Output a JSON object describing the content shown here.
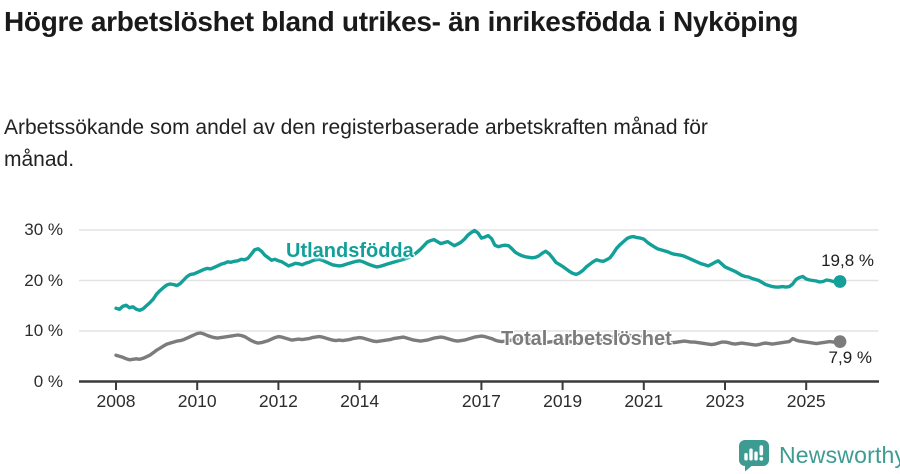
{
  "header": {
    "title": "Högre arbetslöshet bland utrikes- än inrikesfödda i Nyköping",
    "subtitle": "Arbetssökande som andel av den registerbaserade arbetskraften månad för månad."
  },
  "chart_data": {
    "type": "line",
    "title": "Högre arbetslöshet bland utrikes- än inrikesfödda i Nyköping",
    "subtitle": "Arbetssökande som andel av den registerbaserade arbetskraften månad för månad.",
    "x_start": "2008-01",
    "x_end": "2025-11",
    "x_frequency": "monthly",
    "ylim": [
      0,
      32
    ],
    "grid": "horizontal",
    "y_ticks": [
      {
        "label": "0 %",
        "value": 0
      },
      {
        "label": "10 %",
        "value": 10
      },
      {
        "label": "20 %",
        "value": 20
      },
      {
        "label": "30 %",
        "value": 30
      }
    ],
    "x_ticks": [
      {
        "label": "2008",
        "year": 2008
      },
      {
        "label": "2010",
        "year": 2010
      },
      {
        "label": "2012",
        "year": 2012
      },
      {
        "label": "2014",
        "year": 2014
      },
      {
        "label": "2017",
        "year": 2017
      },
      {
        "label": "2019",
        "year": 2019
      },
      {
        "label": "2021",
        "year": 2021
      },
      {
        "label": "2023",
        "year": 2023
      },
      {
        "label": "2025",
        "year": 2025
      }
    ],
    "series": [
      {
        "name": "Utlandsfödda",
        "color": "#12A099",
        "end_label": "19,8 %",
        "end_value": 19.8,
        "values": [
          14.5,
          14.3,
          14.9,
          15.1,
          14.6,
          14.8,
          14.3,
          14.1,
          14.4,
          15.0,
          15.6,
          16.3,
          17.3,
          18.0,
          18.6,
          19.1,
          19.3,
          19.2,
          19.0,
          19.4,
          20.1,
          20.8,
          21.2,
          21.3,
          21.6,
          21.9,
          22.2,
          22.4,
          22.3,
          22.6,
          22.9,
          23.2,
          23.4,
          23.7,
          23.6,
          23.8,
          23.9,
          24.2,
          24.1,
          24.4,
          25.2,
          26.1,
          26.3,
          25.8,
          25.0,
          24.5,
          24.0,
          24.2,
          23.9,
          23.7,
          23.3,
          22.9,
          23.1,
          23.4,
          23.3,
          23.1,
          23.4,
          23.6,
          23.9,
          24.1,
          24.2,
          24.0,
          23.7,
          23.4,
          23.1,
          23.0,
          22.9,
          23.0,
          23.2,
          23.4,
          23.6,
          23.8,
          23.9,
          23.7,
          23.4,
          23.1,
          22.9,
          22.7,
          22.8,
          23.0,
          23.2,
          23.4,
          23.6,
          23.8,
          24.0,
          24.2,
          24.4,
          24.7,
          25.1,
          25.6,
          26.2,
          26.9,
          27.6,
          27.9,
          28.1,
          27.7,
          27.3,
          27.5,
          27.7,
          27.3,
          26.9,
          27.2,
          27.6,
          28.2,
          29.0,
          29.5,
          29.9,
          29.4,
          28.4,
          28.6,
          28.9,
          28.3,
          27.0,
          26.7,
          26.9,
          27.0,
          26.9,
          26.3,
          25.6,
          25.2,
          24.9,
          24.7,
          24.6,
          24.5,
          24.6,
          24.9,
          25.4,
          25.8,
          25.3,
          24.5,
          23.6,
          23.2,
          22.8,
          22.3,
          21.8,
          21.4,
          21.2,
          21.5,
          22.0,
          22.7,
          23.2,
          23.7,
          24.1,
          23.9,
          23.8,
          24.1,
          24.5,
          25.4,
          26.4,
          27.1,
          27.7,
          28.3,
          28.6,
          28.7,
          28.5,
          28.4,
          28.2,
          27.6,
          27.1,
          26.7,
          26.3,
          26.1,
          25.9,
          25.7,
          25.4,
          25.2,
          25.1,
          25.0,
          24.8,
          24.5,
          24.2,
          23.9,
          23.6,
          23.3,
          23.1,
          22.9,
          23.2,
          23.6,
          23.9,
          23.3,
          22.7,
          22.4,
          22.1,
          21.8,
          21.4,
          21.0,
          20.8,
          20.7,
          20.4,
          20.2,
          20.0,
          19.6,
          19.2,
          19.0,
          18.8,
          18.7,
          18.7,
          18.8,
          18.7,
          18.8,
          19.3,
          20.2,
          20.6,
          20.8,
          20.3,
          20.1,
          20.0,
          19.9,
          19.7,
          19.8,
          20.1,
          20.0,
          19.8,
          19.9,
          19.8
        ]
      },
      {
        "name": "Total arbetslöshet",
        "color": "#7C7C7C",
        "end_label": "7,9 %",
        "end_value": 7.9,
        "values": [
          5.2,
          5.0,
          4.8,
          4.5,
          4.3,
          4.4,
          4.5,
          4.4,
          4.6,
          4.9,
          5.2,
          5.7,
          6.2,
          6.6,
          7.0,
          7.4,
          7.6,
          7.8,
          8.0,
          8.1,
          8.3,
          8.6,
          8.9,
          9.2,
          9.5,
          9.6,
          9.4,
          9.1,
          8.9,
          8.7,
          8.6,
          8.7,
          8.8,
          8.9,
          9.0,
          9.1,
          9.2,
          9.1,
          8.9,
          8.5,
          8.1,
          7.8,
          7.6,
          7.7,
          7.9,
          8.1,
          8.4,
          8.7,
          8.9,
          8.8,
          8.6,
          8.4,
          8.2,
          8.3,
          8.4,
          8.3,
          8.4,
          8.5,
          8.7,
          8.8,
          8.9,
          8.8,
          8.6,
          8.4,
          8.2,
          8.1,
          8.2,
          8.1,
          8.2,
          8.3,
          8.5,
          8.6,
          8.7,
          8.6,
          8.4,
          8.2,
          8.0,
          7.9,
          8.0,
          8.1,
          8.2,
          8.3,
          8.5,
          8.6,
          8.7,
          8.8,
          8.6,
          8.4,
          8.2,
          8.1,
          8.0,
          8.1,
          8.2,
          8.4,
          8.6,
          8.7,
          8.8,
          8.7,
          8.5,
          8.3,
          8.1,
          8.0,
          8.1,
          8.2,
          8.4,
          8.6,
          8.8,
          8.9,
          9.0,
          8.9,
          8.7,
          8.5,
          8.2,
          8.0,
          7.9,
          8.0,
          8.1,
          8.2,
          8.4,
          8.5,
          8.6,
          8.5,
          8.3,
          8.1,
          7.9,
          7.7,
          7.6,
          7.7,
          7.8,
          7.9,
          8.0,
          8.1,
          8.2,
          8.1,
          7.9,
          7.8,
          7.7,
          7.6,
          7.7,
          7.8,
          7.9,
          8.0,
          8.1,
          8.2,
          8.3,
          8.4,
          8.6,
          8.9,
          9.1,
          9.2,
          9.3,
          9.2,
          9.1,
          9.0,
          8.9,
          8.9,
          9.0,
          8.9,
          8.7,
          8.5,
          8.3,
          8.1,
          7.9,
          7.8,
          7.7,
          7.7,
          7.8,
          7.9,
          8.0,
          7.9,
          7.8,
          7.8,
          7.7,
          7.6,
          7.5,
          7.4,
          7.3,
          7.4,
          7.6,
          7.8,
          7.8,
          7.7,
          7.5,
          7.4,
          7.5,
          7.6,
          7.5,
          7.4,
          7.3,
          7.2,
          7.3,
          7.5,
          7.6,
          7.5,
          7.4,
          7.5,
          7.6,
          7.7,
          7.8,
          7.9,
          8.5,
          8.2,
          8.0,
          7.9,
          7.8,
          7.7,
          7.6,
          7.5,
          7.6,
          7.7,
          7.8,
          7.9,
          7.8,
          7.8,
          7.9
        ]
      }
    ],
    "colors": {
      "grid": "#E3E3E3",
      "axis": "#3B3B3B",
      "tick_text": "#2d2d2d"
    }
  },
  "footer": {
    "brand": "Newsworthy",
    "brand_color": "#3E9B92"
  }
}
